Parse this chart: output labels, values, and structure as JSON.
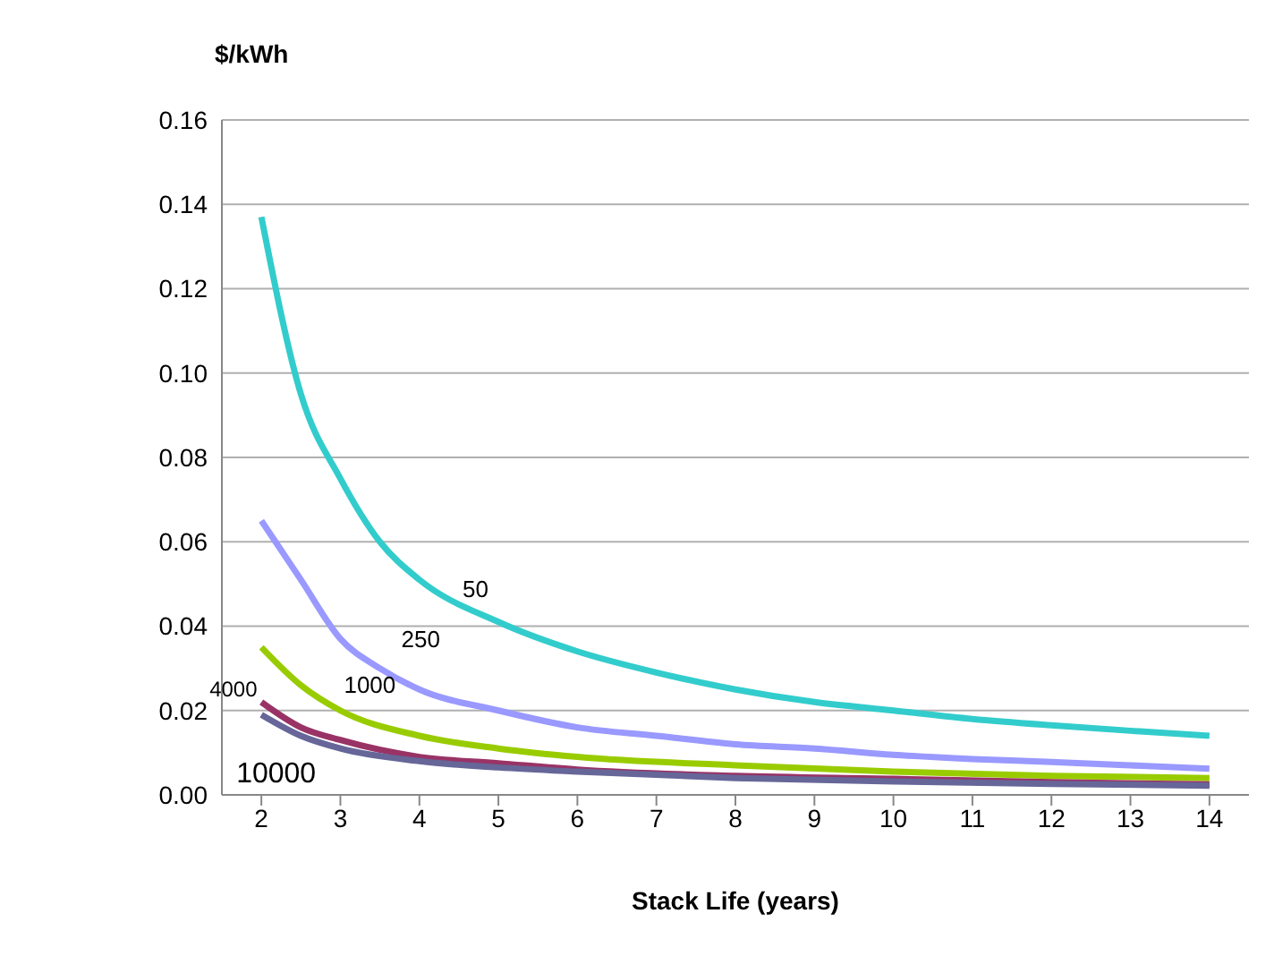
{
  "chart_data": {
    "type": "line",
    "ylabel": "$/kWh",
    "xlabel": "Stack Life (years)",
    "xlim": [
      1.5,
      14.5
    ],
    "xticks": [
      2,
      3,
      4,
      5,
      6,
      7,
      8,
      9,
      10,
      11,
      12,
      13,
      14
    ],
    "ylim": [
      0,
      0.16
    ],
    "yticks": [
      {
        "value": 0,
        "label": "0.00"
      },
      {
        "value": 0.02,
        "label": "0.02"
      },
      {
        "value": 0.04,
        "label": "0.04"
      },
      {
        "value": 0.06,
        "label": "0.06"
      },
      {
        "value": 0.08,
        "label": "0.08"
      },
      {
        "value": 0.1,
        "label": "0.10"
      },
      {
        "value": 0.12,
        "label": "0.12"
      },
      {
        "value": 0.14,
        "label": "0.14"
      },
      {
        "value": 0.16,
        "label": "0.16"
      }
    ],
    "grid": "y",
    "legend": false,
    "marker": "none",
    "line_style": "solid",
    "series": [
      {
        "name": "50",
        "color": "#33cccc",
        "x": [
          2,
          2.5,
          3,
          3.5,
          4,
          5,
          6,
          7,
          8,
          9,
          10,
          11,
          12,
          13,
          14
        ],
        "values": [
          0.137,
          0.095,
          0.075,
          0.06,
          0.051,
          0.041,
          0.034,
          0.029,
          0.025,
          0.022,
          0.02,
          0.018,
          0.0165,
          0.0152,
          0.014
        ]
      },
      {
        "name": "250",
        "color": "#9999ff",
        "x": [
          2,
          2.5,
          3,
          3.5,
          4,
          5,
          6,
          7,
          8,
          9,
          10,
          11,
          12,
          13,
          14
        ],
        "values": [
          0.065,
          0.051,
          0.037,
          0.03,
          0.025,
          0.02,
          0.016,
          0.014,
          0.012,
          0.011,
          0.0095,
          0.0085,
          0.0078,
          0.007,
          0.0062
        ]
      },
      {
        "name": "1000",
        "color": "#99cc00",
        "x": [
          2,
          2.5,
          3,
          4,
          5,
          6,
          8,
          10,
          12,
          14
        ],
        "values": [
          0.035,
          0.026,
          0.02,
          0.014,
          0.011,
          0.009,
          0.007,
          0.0055,
          0.0045,
          0.004
        ]
      },
      {
        "name": "4000",
        "color": "#993366",
        "x": [
          2,
          2.5,
          3,
          4,
          5,
          6,
          8,
          10,
          12,
          14
        ],
        "values": [
          0.022,
          0.016,
          0.013,
          0.009,
          0.0075,
          0.006,
          0.0045,
          0.0038,
          0.003,
          0.0025
        ]
      },
      {
        "name": "10000",
        "color": "#666699",
        "x": [
          2,
          2.5,
          3,
          4,
          5,
          6,
          8,
          10,
          12,
          14
        ],
        "values": [
          0.019,
          0.014,
          0.011,
          0.008,
          0.0065,
          0.0055,
          0.004,
          0.0032,
          0.0026,
          0.0022
        ]
      }
    ]
  }
}
